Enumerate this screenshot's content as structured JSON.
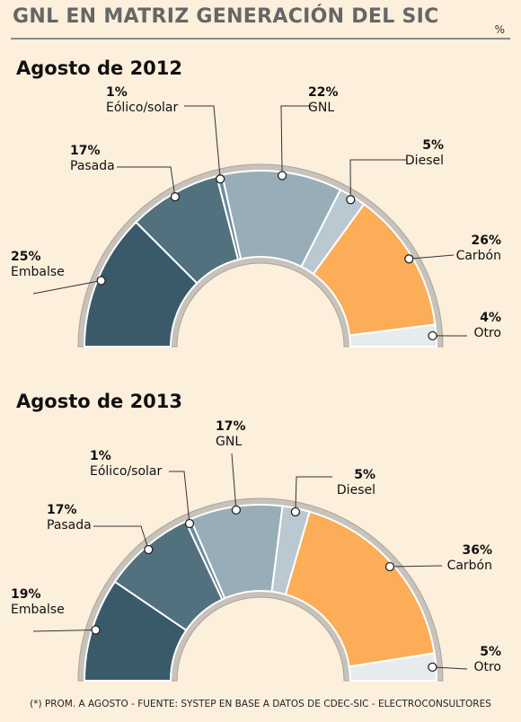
{
  "header": {
    "title": "GNL EN MATRIZ GENERACIÓN DEL SIC",
    "unit": "%"
  },
  "footer": {
    "source": "(*) PROM. A AGOSTO - FUENTE: SYSTEP EN BASE A DATOS DE CDEC-SIC - ELECTROCONSULTORES"
  },
  "chart_data": [
    {
      "type": "pie",
      "title": "Agosto de 2012",
      "categories": [
        "Embalse",
        "Pasada",
        "Eólico/solar",
        "GNL",
        "Diesel",
        "Carbón",
        "Otro"
      ],
      "values": [
        25,
        17,
        1,
        22,
        5,
        26,
        4
      ],
      "value_labels": [
        "25%",
        "17%",
        "1%",
        "22%",
        "5%",
        "26%",
        "4%"
      ],
      "colors": [
        "#3a5a6a",
        "#52717f",
        "#6f8b97",
        "#98adb8",
        "#bac9d1",
        "#fbad57",
        "#e6ebee"
      ],
      "legend": "none"
    },
    {
      "type": "pie",
      "title": "Agosto de 2013",
      "categories": [
        "Embalse",
        "Pasada",
        "Eólico/solar",
        "GNL",
        "Diesel",
        "Carbón",
        "Otro"
      ],
      "values": [
        19,
        17,
        1,
        17,
        5,
        36,
        5
      ],
      "value_labels": [
        "19%",
        "17%",
        "1%",
        "17%",
        "5%",
        "36%",
        "5%"
      ],
      "colors": [
        "#3a5a6a",
        "#52717f",
        "#6f8b97",
        "#98adb8",
        "#bac9d1",
        "#fbad57",
        "#e6ebee"
      ],
      "legend": "none"
    }
  ]
}
